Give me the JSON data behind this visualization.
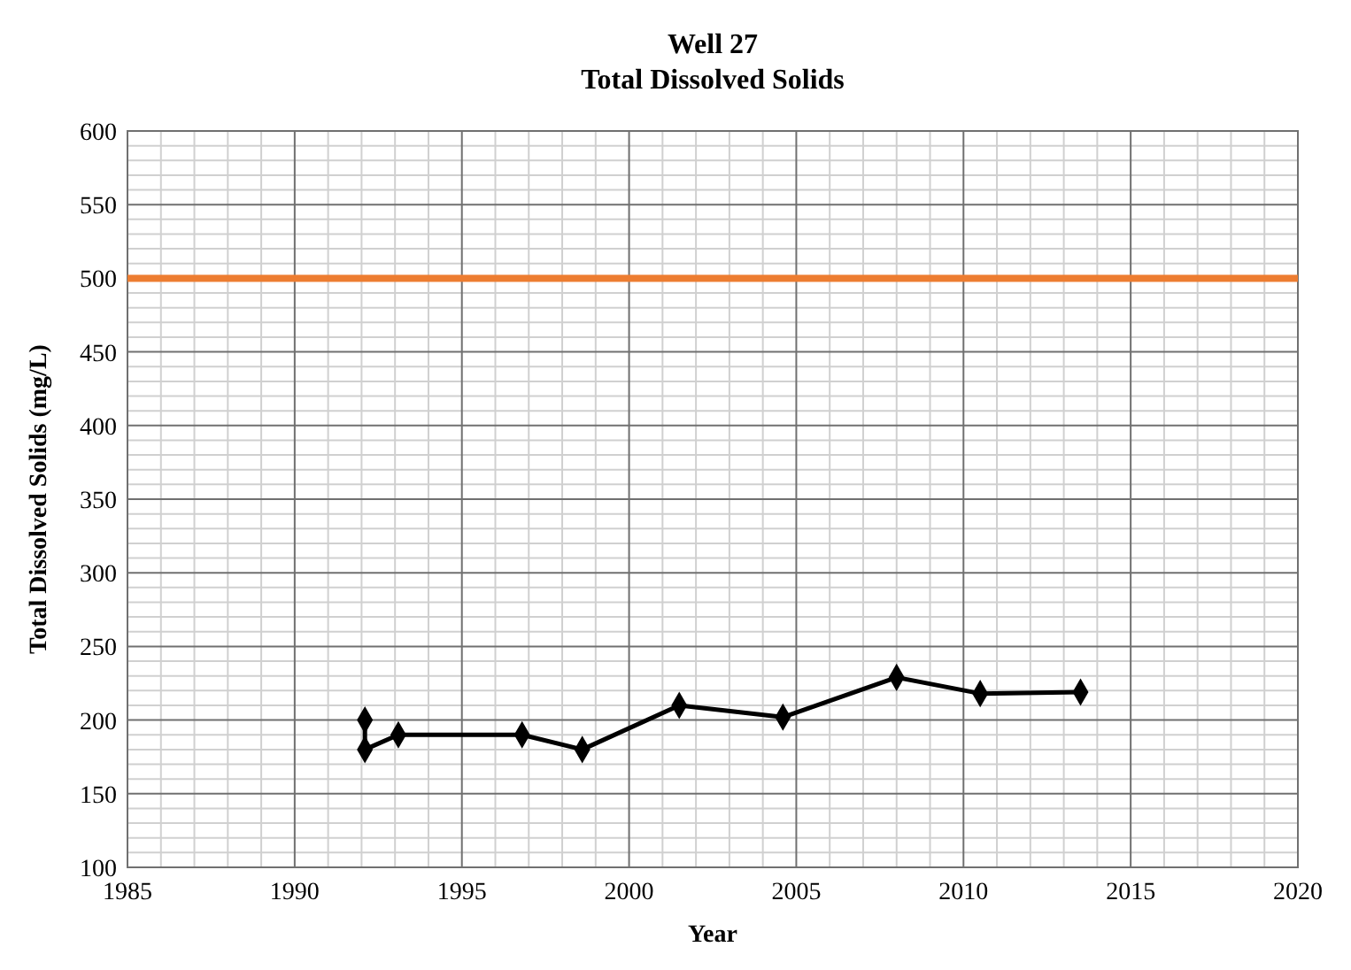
{
  "chart_data": {
    "type": "line",
    "title": "Well 27",
    "subtitle": "Total Dissolved Solids",
    "xlabel": "Year",
    "ylabel": "Total Dissolved Solids (mg/L)",
    "x": [
      1992.1,
      1992.1,
      1993.1,
      1996.8,
      1998.6,
      2001.5,
      2004.6,
      2008.0,
      2010.5,
      2013.5
    ],
    "series": [
      {
        "color": "#000000",
        "values": [
          200,
          180,
          190,
          190,
          180,
          210,
          202,
          229,
          218,
          219
        ]
      }
    ],
    "xlim": [
      1985,
      2020
    ],
    "xticks": [
      1985,
      1990,
      1995,
      2000,
      2005,
      2010,
      2015,
      2020
    ],
    "ylim": [
      100,
      600
    ],
    "yticks": [
      100,
      150,
      200,
      250,
      300,
      350,
      400,
      450,
      500,
      550,
      600
    ],
    "ref_lines": [
      {
        "axis": "y",
        "value": 500,
        "color": "#ed7d31"
      }
    ],
    "grid": true,
    "marker": "diamond",
    "line_style": "solid"
  }
}
